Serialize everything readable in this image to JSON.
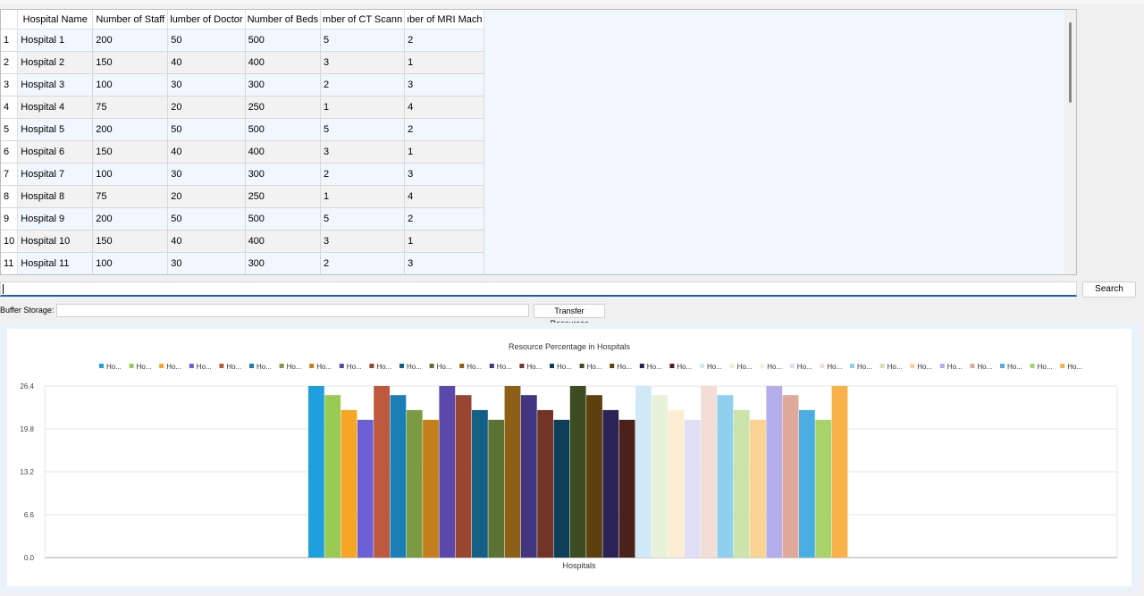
{
  "table": {
    "headers": [
      "Hospital Name",
      "Number of Staff",
      "Number of Doctors",
      "Number of Beds",
      "Number of CT Scanners",
      "Number of MRI Machines"
    ],
    "header_display": [
      "Hospital Name",
      "Number of Staff",
      "lumber of Doctor",
      "Number of Beds",
      "mber of CT Scann",
      "ıber of MRI Mach"
    ],
    "rows": [
      {
        "n": "1",
        "cells": [
          "Hospital 1",
          "200",
          "50",
          "500",
          "5",
          "2"
        ]
      },
      {
        "n": "2",
        "cells": [
          "Hospital 2",
          "150",
          "40",
          "400",
          "3",
          "1"
        ]
      },
      {
        "n": "3",
        "cells": [
          "Hospital 3",
          "100",
          "30",
          "300",
          "2",
          "3"
        ]
      },
      {
        "n": "4",
        "cells": [
          "Hospital 4",
          "75",
          "20",
          "250",
          "1",
          "4"
        ]
      },
      {
        "n": "5",
        "cells": [
          "Hospital 5",
          "200",
          "50",
          "500",
          "5",
          "2"
        ]
      },
      {
        "n": "6",
        "cells": [
          "Hospital 6",
          "150",
          "40",
          "400",
          "3",
          "1"
        ]
      },
      {
        "n": "7",
        "cells": [
          "Hospital 7",
          "100",
          "30",
          "300",
          "2",
          "3"
        ]
      },
      {
        "n": "8",
        "cells": [
          "Hospital 8",
          "75",
          "20",
          "250",
          "1",
          "4"
        ]
      },
      {
        "n": "9",
        "cells": [
          "Hospital 9",
          "200",
          "50",
          "500",
          "5",
          "2"
        ]
      },
      {
        "n": "10",
        "cells": [
          "Hospital 10",
          "150",
          "40",
          "400",
          "3",
          "1"
        ]
      },
      {
        "n": "11",
        "cells": [
          "Hospital 11",
          "100",
          "30",
          "300",
          "2",
          "3"
        ]
      }
    ]
  },
  "search": {
    "value": "",
    "button_label": "Search"
  },
  "buffer": {
    "label": "Buffer Storage:",
    "value": "",
    "transfer_label": "Transfer Resources"
  },
  "chart_data": {
    "type": "bar",
    "title": "Resource Percentage in Hospitals",
    "xlabel": "Hospitals",
    "ylabel": "",
    "ylim": [
      0.0,
      26.4
    ],
    "yticks": [
      "0.0",
      "6.6",
      "13.2",
      "19.8",
      "26.4"
    ],
    "grid": true,
    "legend_placement": "top",
    "series": [
      {
        "name": "Ho...",
        "value": 26.4,
        "color": "#209fdf"
      },
      {
        "name": "Ho...",
        "value": 25.0,
        "color": "#99ca53"
      },
      {
        "name": "Ho...",
        "value": 22.7,
        "color": "#f6a625"
      },
      {
        "name": "Ho...",
        "value": 21.2,
        "color": "#6d5fd5"
      },
      {
        "name": "Ho...",
        "value": 26.4,
        "color": "#bf593e"
      },
      {
        "name": "Ho...",
        "value": 25.0,
        "color": "#1a7fb5"
      },
      {
        "name": "Ho...",
        "value": 22.7,
        "color": "#7a9b41"
      },
      {
        "name": "Ho...",
        "value": 21.2,
        "color": "#c27f1c"
      },
      {
        "name": "Ho...",
        "value": 26.4,
        "color": "#5a49ab"
      },
      {
        "name": "Ho...",
        "value": 25.0,
        "color": "#984531"
      },
      {
        "name": "Ho...",
        "value": 22.7,
        "color": "#135f86"
      },
      {
        "name": "Ho...",
        "value": 21.2,
        "color": "#5b7332"
      },
      {
        "name": "Ho...",
        "value": 26.4,
        "color": "#8e5f16"
      },
      {
        "name": "Ho...",
        "value": 25.0,
        "color": "#423681"
      },
      {
        "name": "Ho...",
        "value": 22.7,
        "color": "#723426"
      },
      {
        "name": "Ho...",
        "value": 21.2,
        "color": "#0d3f59"
      },
      {
        "name": "Ho...",
        "value": 26.4,
        "color": "#3d4c21"
      },
      {
        "name": "Ho...",
        "value": 25.0,
        "color": "#5e3f0e"
      },
      {
        "name": "Ho...",
        "value": 22.7,
        "color": "#2b2355"
      },
      {
        "name": "Ho...",
        "value": 21.2,
        "color": "#4b2219"
      },
      {
        "name": "Ho...",
        "value": 26.4,
        "color": "#d0e9f6"
      },
      {
        "name": "Ho...",
        "value": 25.0,
        "color": "#e8f2d9"
      },
      {
        "name": "Ho...",
        "value": 22.7,
        "color": "#fdedd3"
      },
      {
        "name": "Ho...",
        "value": 21.2,
        "color": "#e1def5"
      },
      {
        "name": "Ho...",
        "value": 26.4,
        "color": "#f2ddd7"
      },
      {
        "name": "Ho...",
        "value": 25.0,
        "color": "#8fd0ef"
      },
      {
        "name": "Ho...",
        "value": 22.7,
        "color": "#cce4a9"
      },
      {
        "name": "Ho...",
        "value": 21.2,
        "color": "#fad392"
      },
      {
        "name": "Ho...",
        "value": 26.4,
        "color": "#b5aeea"
      },
      {
        "name": "Ho...",
        "value": 25.0,
        "color": "#dea89b"
      },
      {
        "name": "Ho...",
        "value": 22.7,
        "color": "#4aaee2"
      },
      {
        "name": "Ho...",
        "value": 21.2,
        "color": "#a8d26a"
      },
      {
        "name": "Ho...",
        "value": 26.4,
        "color": "#f7b34a"
      }
    ]
  }
}
